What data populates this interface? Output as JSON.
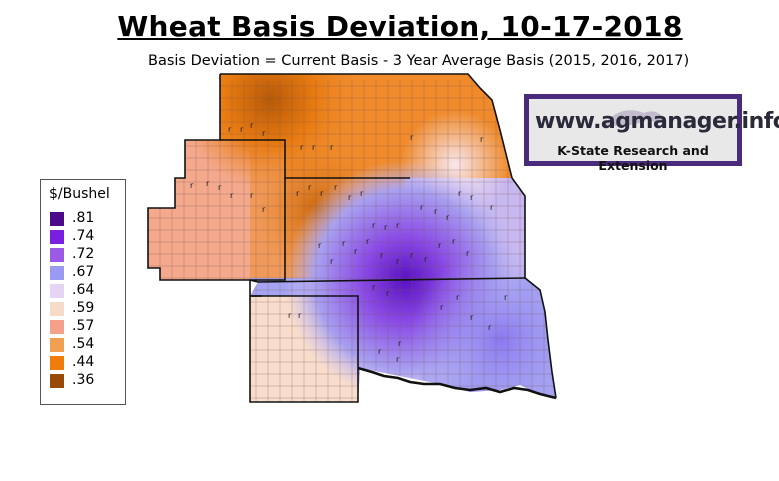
{
  "title": "Wheat Basis Deviation, 10-17-2018",
  "subtitle": "Basis Deviation = Current Basis - 3 Year Average Basis (2015, 2016, 2017)",
  "legend": {
    "title": "$/Bushel",
    "items": [
      {
        "label": ".81",
        "color": "#4b0a8a"
      },
      {
        "label": ".74",
        "color": "#7a1ee0"
      },
      {
        "label": ".72",
        "color": "#9a5ae6"
      },
      {
        "label": ".67",
        "color": "#9a9af2"
      },
      {
        "label": ".64",
        "color": "#e6d4f4"
      },
      {
        "label": ".59",
        "color": "#f6dcc8"
      },
      {
        "label": ".57",
        "color": "#f4a08a"
      },
      {
        "label": ".54",
        "color": "#f0a050"
      },
      {
        "label": ".44",
        "color": "#f07c0c"
      },
      {
        "label": ".36",
        "color": "#9a4a08"
      }
    ]
  },
  "brand": {
    "url": "www.agmanager.info",
    "org": "K-State Research and Extension",
    "border_color": "#4a2a7a"
  }
}
